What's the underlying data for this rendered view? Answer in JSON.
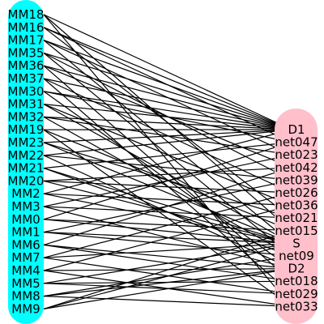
{
  "colors": {
    "left_column": "#00ffff",
    "right_column": "#ffc0cb",
    "edge": "#000000",
    "background": "#ffffff"
  },
  "left_nodes": [
    "MM18",
    "MM16",
    "MM17",
    "MM35",
    "MM36",
    "MM37",
    "MM30",
    "MM31",
    "MM32",
    "MM19",
    "MM23",
    "MM22",
    "MM21",
    "MM20",
    "MM2",
    "MM3",
    "MM0",
    "MM1",
    "MM6",
    "MM7",
    "MM4",
    "MM5",
    "MM8",
    "MM9"
  ],
  "right_nodes": [
    "D1",
    "net047",
    "net023",
    "net042",
    "net039",
    "net026",
    "net036",
    "net021",
    "net015",
    "S",
    "net09",
    "D2",
    "net018",
    "net029",
    "net033"
  ],
  "edges": [
    [
      "MM18",
      "net033"
    ],
    [
      "MM18",
      "D1"
    ],
    [
      "MM18",
      "net015"
    ],
    [
      "MM16",
      "D1"
    ],
    [
      "MM16",
      "net047"
    ],
    [
      "MM16",
      "net021"
    ],
    [
      "MM17",
      "D1"
    ],
    [
      "MM17",
      "net023"
    ],
    [
      "MM17",
      "S"
    ],
    [
      "MM35",
      "D1"
    ],
    [
      "MM35",
      "net039"
    ],
    [
      "MM35",
      "net09"
    ],
    [
      "MM36",
      "D1"
    ],
    [
      "MM36",
      "net042"
    ],
    [
      "MM36",
      "net018"
    ],
    [
      "MM37",
      "D1"
    ],
    [
      "MM37",
      "net026"
    ],
    [
      "MM37",
      "net029"
    ],
    [
      "MM30",
      "D1"
    ],
    [
      "MM30",
      "net047"
    ],
    [
      "MM30",
      "D2"
    ],
    [
      "MM31",
      "D1"
    ],
    [
      "MM31",
      "net036"
    ],
    [
      "MM31",
      "S"
    ],
    [
      "MM32",
      "D1"
    ],
    [
      "MM32",
      "net023"
    ],
    [
      "MM32",
      "net09"
    ],
    [
      "MM19",
      "D1"
    ],
    [
      "MM19",
      "net015"
    ],
    [
      "MM19",
      "net033"
    ],
    [
      "MM23",
      "D1"
    ],
    [
      "MM23",
      "net021"
    ],
    [
      "MM23",
      "S"
    ],
    [
      "MM22",
      "D1"
    ],
    [
      "MM22",
      "net039"
    ],
    [
      "MM22",
      "D2"
    ],
    [
      "MM21",
      "net047"
    ],
    [
      "MM21",
      "net09"
    ],
    [
      "MM21",
      "S"
    ],
    [
      "MM20",
      "net042"
    ],
    [
      "MM20",
      "net026"
    ],
    [
      "MM20",
      "S"
    ],
    [
      "MM2",
      "D1"
    ],
    [
      "MM2",
      "net036"
    ],
    [
      "MM2",
      "S"
    ],
    [
      "MM3",
      "net023"
    ],
    [
      "MM3",
      "net021"
    ],
    [
      "MM3",
      "D2"
    ],
    [
      "MM0",
      "net047"
    ],
    [
      "MM0",
      "net015"
    ],
    [
      "MM0",
      "S"
    ],
    [
      "MM1",
      "net039"
    ],
    [
      "MM1",
      "net09"
    ],
    [
      "MM1",
      "S"
    ],
    [
      "MM6",
      "net042"
    ],
    [
      "MM6",
      "D2"
    ],
    [
      "MM6",
      "net018"
    ],
    [
      "MM7",
      "net026"
    ],
    [
      "MM7",
      "S"
    ],
    [
      "MM7",
      "net029"
    ],
    [
      "MM4",
      "net036"
    ],
    [
      "MM4",
      "D2"
    ],
    [
      "MM4",
      "net033"
    ],
    [
      "MM5",
      "S"
    ],
    [
      "MM5",
      "net018"
    ],
    [
      "MM5",
      "net029"
    ],
    [
      "MM8",
      "D2"
    ],
    [
      "MM8",
      "net09"
    ],
    [
      "MM8",
      "net033"
    ],
    [
      "MM9",
      "S"
    ],
    [
      "MM9",
      "net015"
    ],
    [
      "MM9",
      "D2"
    ]
  ]
}
